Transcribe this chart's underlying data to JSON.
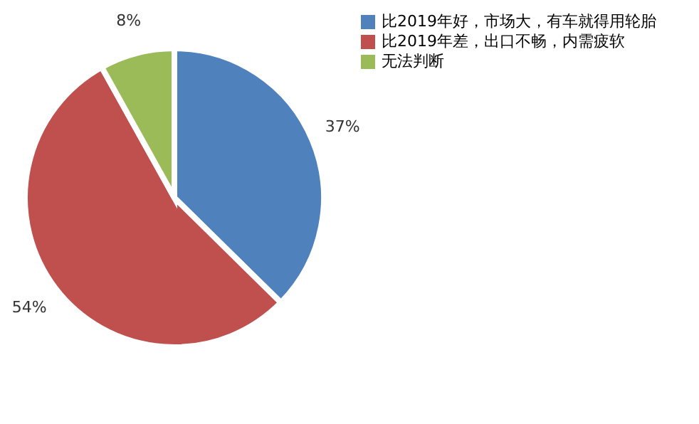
{
  "chart_data": {
    "type": "pie",
    "categories": [
      "比2019年好，市场大，有车就得用轮胎",
      "比2019年差，出口不畅，内需疲软",
      "无法判断"
    ],
    "values": [
      37,
      54,
      8
    ],
    "value_labels": [
      "37%",
      "54%",
      "8%"
    ],
    "colors": [
      "#4f81bd",
      "#c0504d",
      "#9bbb59"
    ],
    "legend": "right"
  }
}
